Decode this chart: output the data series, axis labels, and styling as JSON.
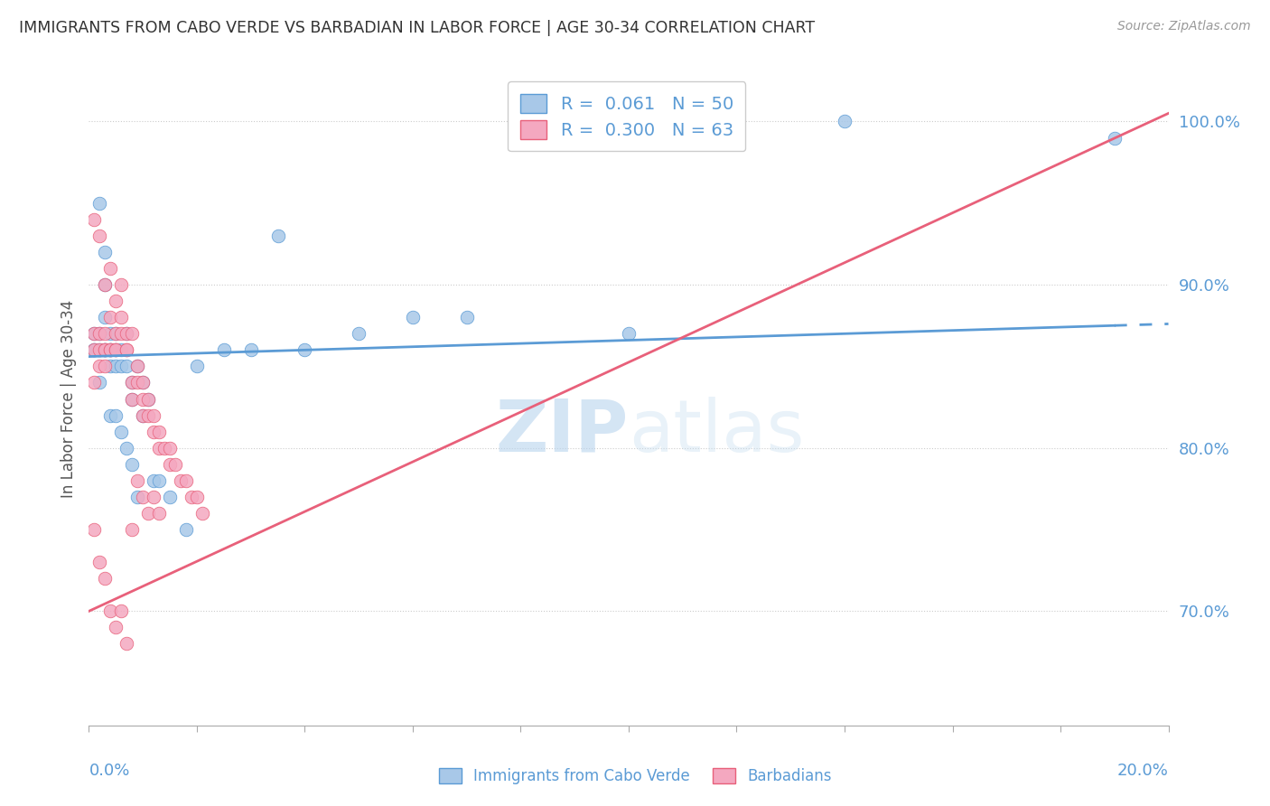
{
  "title": "IMMIGRANTS FROM CABO VERDE VS BARBADIAN IN LABOR FORCE | AGE 30-34 CORRELATION CHART",
  "source": "Source: ZipAtlas.com",
  "ylabel": "In Labor Force | Age 30-34",
  "right_yticks": [
    0.7,
    0.8,
    0.9,
    1.0
  ],
  "right_yticklabels": [
    "70.0%",
    "80.0%",
    "90.0%",
    "100.0%"
  ],
  "xlim": [
    0.0,
    0.2
  ],
  "ylim": [
    0.63,
    1.03
  ],
  "cabo_verde_R": 0.061,
  "cabo_verde_N": 50,
  "barbadian_R": 0.3,
  "barbadian_N": 63,
  "cabo_verde_color": "#a8c8e8",
  "barbadian_color": "#f4a8c0",
  "cabo_verde_line_color": "#5b9bd5",
  "barbadian_line_color": "#e8607a",
  "legend_text_color": "#5b9bd5",
  "watermark_color": "#d8eaf8",
  "cabo_verde_x": [
    0.001,
    0.001,
    0.002,
    0.002,
    0.002,
    0.003,
    0.003,
    0.003,
    0.003,
    0.004,
    0.004,
    0.004,
    0.004,
    0.005,
    0.005,
    0.005,
    0.006,
    0.006,
    0.007,
    0.007,
    0.008,
    0.008,
    0.009,
    0.01,
    0.01,
    0.011,
    0.012,
    0.013,
    0.015,
    0.018,
    0.02,
    0.025,
    0.03,
    0.035,
    0.04,
    0.05,
    0.06,
    0.07,
    0.1,
    0.14,
    0.19,
    0.001,
    0.002,
    0.003,
    0.004,
    0.005,
    0.006,
    0.007,
    0.008,
    0.009
  ],
  "cabo_verde_y": [
    0.86,
    0.87,
    0.95,
    0.87,
    0.86,
    0.92,
    0.9,
    0.88,
    0.86,
    0.87,
    0.86,
    0.86,
    0.85,
    0.87,
    0.86,
    0.85,
    0.86,
    0.85,
    0.87,
    0.85,
    0.84,
    0.83,
    0.85,
    0.84,
    0.82,
    0.83,
    0.78,
    0.78,
    0.77,
    0.75,
    0.85,
    0.86,
    0.86,
    0.93,
    0.86,
    0.87,
    0.88,
    0.88,
    0.87,
    1.0,
    0.99,
    0.86,
    0.84,
    0.86,
    0.82,
    0.82,
    0.81,
    0.8,
    0.79,
    0.77
  ],
  "barbadian_x": [
    0.001,
    0.001,
    0.001,
    0.001,
    0.002,
    0.002,
    0.002,
    0.002,
    0.003,
    0.003,
    0.003,
    0.003,
    0.003,
    0.004,
    0.004,
    0.004,
    0.004,
    0.005,
    0.005,
    0.005,
    0.005,
    0.006,
    0.006,
    0.006,
    0.007,
    0.007,
    0.007,
    0.008,
    0.008,
    0.008,
    0.009,
    0.009,
    0.01,
    0.01,
    0.01,
    0.011,
    0.011,
    0.012,
    0.012,
    0.013,
    0.013,
    0.014,
    0.015,
    0.015,
    0.016,
    0.017,
    0.018,
    0.019,
    0.02,
    0.021,
    0.001,
    0.002,
    0.003,
    0.004,
    0.005,
    0.006,
    0.007,
    0.008,
    0.009,
    0.01,
    0.011,
    0.012,
    0.013
  ],
  "barbadian_y": [
    0.86,
    0.87,
    0.94,
    0.84,
    0.87,
    0.93,
    0.86,
    0.85,
    0.9,
    0.87,
    0.86,
    0.85,
    0.86,
    0.91,
    0.88,
    0.86,
    0.86,
    0.89,
    0.87,
    0.86,
    0.86,
    0.9,
    0.88,
    0.87,
    0.87,
    0.86,
    0.86,
    0.87,
    0.84,
    0.83,
    0.85,
    0.84,
    0.84,
    0.83,
    0.82,
    0.83,
    0.82,
    0.82,
    0.81,
    0.81,
    0.8,
    0.8,
    0.79,
    0.8,
    0.79,
    0.78,
    0.78,
    0.77,
    0.77,
    0.76,
    0.75,
    0.73,
    0.72,
    0.7,
    0.69,
    0.7,
    0.68,
    0.75,
    0.78,
    0.77,
    0.76,
    0.77,
    0.76
  ],
  "cv_trend_x0": 0.0,
  "cv_trend_y0": 0.856,
  "cv_trend_x1": 0.19,
  "cv_trend_y1": 0.875,
  "cv_trend_dash_x0": 0.19,
  "cv_trend_dash_y0": 0.875,
  "cv_trend_dash_x1": 0.2,
  "cv_trend_dash_y1": 0.876,
  "barb_trend_x0": 0.0,
  "barb_trend_y0": 0.7,
  "barb_trend_x1": 0.2,
  "barb_trend_y1": 1.005
}
